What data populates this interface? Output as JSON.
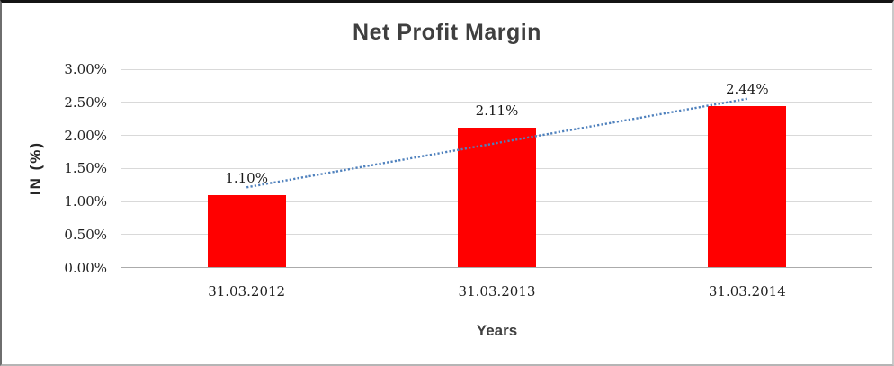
{
  "chart_data": {
    "type": "bar",
    "title": "Net Profit Margin",
    "xlabel": "Years",
    "ylabel": "IN (%)",
    "categories": [
      "31.03.2012",
      "31.03.2013",
      "31.03.2014"
    ],
    "values": [
      1.1,
      2.11,
      2.44
    ],
    "data_labels": [
      "1.10%",
      "2.11%",
      "2.44%"
    ],
    "yticks": {
      "values": [
        0,
        0.5,
        1.0,
        1.5,
        2.0,
        2.5,
        3.0
      ],
      "labels": [
        "0.00%",
        "0.50%",
        "1.00%",
        "1.50%",
        "2.00%",
        "2.50%",
        "3.00%"
      ]
    },
    "ylim": [
      0,
      3
    ],
    "grid": true,
    "legend": "none",
    "bar_color": "#ff0000",
    "trendline": {
      "type": "linear",
      "style": "dotted",
      "color": "#4f81bd"
    },
    "colors": {
      "title_text": "#3f3f3f",
      "tick_text": "#1f1f1f",
      "gridline": "#d9d9d9",
      "axis_line": "#ababab"
    }
  }
}
